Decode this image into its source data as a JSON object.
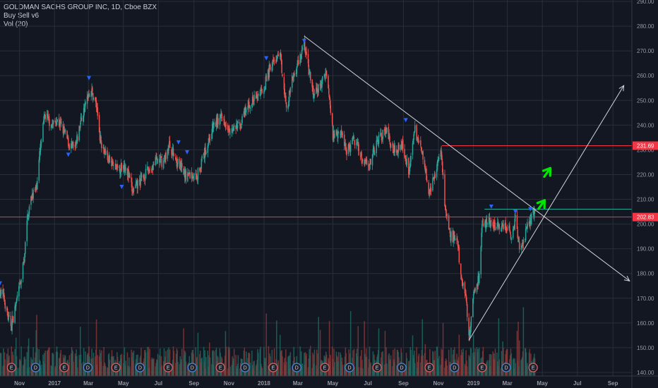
{
  "legend": {
    "symbol": "GOLDMAN SACHS GROUP INC, 1D, Cboe BZX",
    "indicator": "Buy Sell v6",
    "volume": "Vol (20)"
  },
  "colors": {
    "background": "#131722",
    "grid": "#2a2e39",
    "up": "#26a69a",
    "down": "#ef5350",
    "volume_up": "#1f6b64",
    "volume_down": "#8a3a3a",
    "signal": "#2962ff",
    "trendline": "#d1d4dc",
    "level_line": "#f23645",
    "arrow": "#00e600",
    "earnings_badge": "#e06666",
    "dividend_badge": "#4f8bd8"
  },
  "chart_data": {
    "type": "candlestick",
    "title": "GOLDMAN SACHS GROUP INC, 1D, Cboe BZX",
    "x_range": [
      "2016-09-28",
      "2019-10-04"
    ],
    "ylim": [
      140,
      290
    ],
    "y_ticks": [
      140,
      150,
      160,
      170,
      180,
      190,
      200,
      210,
      220,
      230,
      240,
      250,
      260,
      270,
      280,
      290
    ],
    "x_ticks": [
      {
        "date": "2016-11-01",
        "label": "Nov"
      },
      {
        "date": "2017-01-01",
        "label": "2017"
      },
      {
        "date": "2017-03-01",
        "label": "Mar"
      },
      {
        "date": "2017-05-01",
        "label": "May"
      },
      {
        "date": "2017-07-01",
        "label": "Jul"
      },
      {
        "date": "2017-09-01",
        "label": "Sep"
      },
      {
        "date": "2017-11-01",
        "label": "Nov"
      },
      {
        "date": "2018-01-01",
        "label": "2018"
      },
      {
        "date": "2018-03-01",
        "label": "Mar"
      },
      {
        "date": "2018-05-01",
        "label": "May"
      },
      {
        "date": "2018-07-01",
        "label": "Jul"
      },
      {
        "date": "2018-09-01",
        "label": "Sep"
      },
      {
        "date": "2018-11-01",
        "label": "Nov"
      },
      {
        "date": "2019-01-01",
        "label": "2019"
      },
      {
        "date": "2019-03-01",
        "label": "Mar"
      },
      {
        "date": "2019-05-01",
        "label": "May"
      },
      {
        "date": "2019-07-01",
        "label": "Jul"
      },
      {
        "date": "2019-09-01",
        "label": "Sep"
      }
    ],
    "price_anchors": [
      [
        "2016-09-28",
        173
      ],
      [
        "2016-10-05",
        170
      ],
      [
        "2016-10-12",
        162
      ],
      [
        "2016-10-18",
        159
      ],
      [
        "2016-10-26",
        168
      ],
      [
        "2016-11-03",
        176
      ],
      [
        "2016-11-09",
        186
      ],
      [
        "2016-11-15",
        203
      ],
      [
        "2016-11-23",
        212
      ],
      [
        "2016-11-30",
        214
      ],
      [
        "2016-12-07",
        230
      ],
      [
        "2016-12-15",
        244
      ],
      [
        "2016-12-28",
        240
      ],
      [
        "2017-01-05",
        242
      ],
      [
        "2017-01-12",
        240
      ],
      [
        "2017-01-20",
        236
      ],
      [
        "2017-01-27",
        232
      ],
      [
        "2017-02-06",
        230
      ],
      [
        "2017-02-16",
        242
      ],
      [
        "2017-02-24",
        248
      ],
      [
        "2017-03-01",
        253
      ],
      [
        "2017-03-06",
        254
      ],
      [
        "2017-03-15",
        248
      ],
      [
        "2017-03-22",
        234
      ],
      [
        "2017-04-05",
        226
      ],
      [
        "2017-04-20",
        222
      ],
      [
        "2017-05-05",
        224
      ],
      [
        "2017-05-17",
        213
      ],
      [
        "2017-06-01",
        218
      ],
      [
        "2017-06-15",
        222
      ],
      [
        "2017-06-30",
        226
      ],
      [
        "2017-07-10",
        225
      ],
      [
        "2017-07-20",
        232
      ],
      [
        "2017-08-01",
        226
      ],
      [
        "2017-08-15",
        220
      ],
      [
        "2017-08-25",
        220
      ],
      [
        "2017-09-05",
        219
      ],
      [
        "2017-09-20",
        229
      ],
      [
        "2017-10-05",
        240
      ],
      [
        "2017-10-20",
        243
      ],
      [
        "2017-11-06",
        238
      ],
      [
        "2017-11-20",
        240
      ],
      [
        "2017-12-05",
        248
      ],
      [
        "2017-12-18",
        251
      ],
      [
        "2018-01-02",
        256
      ],
      [
        "2018-01-12",
        264
      ],
      [
        "2018-01-29",
        268
      ],
      [
        "2018-02-05",
        256
      ],
      [
        "2018-02-09",
        246
      ],
      [
        "2018-02-20",
        259
      ],
      [
        "2018-03-01",
        265
      ],
      [
        "2018-03-12",
        273
      ],
      [
        "2018-03-20",
        262
      ],
      [
        "2018-03-28",
        252
      ],
      [
        "2018-04-10",
        256
      ],
      [
        "2018-04-20",
        262
      ],
      [
        "2018-05-01",
        236
      ],
      [
        "2018-05-14",
        238
      ],
      [
        "2018-05-25",
        230
      ],
      [
        "2018-06-08",
        234
      ],
      [
        "2018-06-22",
        226
      ],
      [
        "2018-07-06",
        225
      ],
      [
        "2018-07-18",
        234
      ],
      [
        "2018-08-01",
        238
      ],
      [
        "2018-08-15",
        230
      ],
      [
        "2018-08-30",
        232
      ],
      [
        "2018-09-10",
        222
      ],
      [
        "2018-09-21",
        238
      ],
      [
        "2018-10-05",
        228
      ],
      [
        "2018-10-16",
        213
      ],
      [
        "2018-10-25",
        218
      ],
      [
        "2018-11-05",
        232
      ],
      [
        "2018-11-07",
        226
      ],
      [
        "2018-11-12",
        207
      ],
      [
        "2018-11-21",
        195
      ],
      [
        "2018-12-03",
        194
      ],
      [
        "2018-12-11",
        178
      ],
      [
        "2018-12-19",
        172
      ],
      [
        "2018-12-24",
        153
      ],
      [
        "2019-01-02",
        173
      ],
      [
        "2019-01-10",
        178
      ],
      [
        "2019-01-16",
        198
      ],
      [
        "2019-01-25",
        202
      ],
      [
        "2019-02-04",
        200
      ],
      [
        "2019-02-15",
        198
      ],
      [
        "2019-02-28",
        199
      ],
      [
        "2019-03-08",
        196
      ],
      [
        "2019-03-15",
        202
      ],
      [
        "2019-03-22",
        190
      ],
      [
        "2019-03-29",
        192
      ],
      [
        "2019-04-05",
        199
      ],
      [
        "2019-04-12",
        203
      ],
      [
        "2019-04-18",
        205
      ]
    ],
    "signals": [
      {
        "date": "2016-09-28",
        "price": 176
      },
      {
        "date": "2017-01-25",
        "price": 228
      },
      {
        "date": "2017-03-02",
        "price": 259
      },
      {
        "date": "2017-04-28",
        "price": 215
      },
      {
        "date": "2017-08-05",
        "price": 233
      },
      {
        "date": "2017-08-20",
        "price": 229
      },
      {
        "date": "2018-01-05",
        "price": 267
      },
      {
        "date": "2018-03-12",
        "price": 274
      },
      {
        "date": "2018-09-05",
        "price": 242
      },
      {
        "date": "2019-02-01",
        "price": 207
      },
      {
        "date": "2019-03-15",
        "price": 205
      },
      {
        "date": "2019-04-10",
        "price": 206
      }
    ],
    "events": [
      {
        "date": "2016-10-18",
        "label": "E",
        "kind": "earnings"
      },
      {
        "date": "2016-11-29",
        "label": "D",
        "kind": "dividend"
      },
      {
        "date": "2017-01-18",
        "label": "E",
        "kind": "earnings"
      },
      {
        "date": "2017-02-28",
        "label": "D",
        "kind": "dividend"
      },
      {
        "date": "2017-04-18",
        "label": "E",
        "kind": "earnings"
      },
      {
        "date": "2017-05-30",
        "label": "D",
        "kind": "dividend"
      },
      {
        "date": "2017-07-18",
        "label": "E",
        "kind": "earnings"
      },
      {
        "date": "2017-08-29",
        "label": "D",
        "kind": "dividend"
      },
      {
        "date": "2017-10-17",
        "label": "E",
        "kind": "earnings"
      },
      {
        "date": "2017-11-29",
        "label": "D",
        "kind": "dividend"
      },
      {
        "date": "2018-01-17",
        "label": "E",
        "kind": "earnings"
      },
      {
        "date": "2018-02-27",
        "label": "D",
        "kind": "dividend"
      },
      {
        "date": "2018-04-17",
        "label": "E",
        "kind": "earnings"
      },
      {
        "date": "2018-05-30",
        "label": "D",
        "kind": "dividend"
      },
      {
        "date": "2018-07-17",
        "label": "E",
        "kind": "earnings"
      },
      {
        "date": "2018-08-29",
        "label": "D",
        "kind": "dividend"
      },
      {
        "date": "2018-10-16",
        "label": "E",
        "kind": "earnings"
      },
      {
        "date": "2018-11-29",
        "label": "D",
        "kind": "dividend"
      },
      {
        "date": "2019-01-16",
        "label": "E",
        "kind": "earnings"
      },
      {
        "date": "2019-02-27",
        "label": "D",
        "kind": "dividend"
      },
      {
        "date": "2019-04-15",
        "label": "E",
        "kind": "earnings"
      }
    ],
    "trendlines": [
      {
        "name": "descending",
        "from": {
          "date": "2018-03-12",
          "price": 276
        },
        "to": {
          "date": "2019-09-30",
          "price": 177
        }
      },
      {
        "name": "ascending",
        "from": {
          "date": "2018-12-24",
          "price": 153
        },
        "to": {
          "date": "2019-09-20",
          "price": 256
        }
      }
    ],
    "levels": [
      {
        "price": 231.69,
        "from": "2018-11-07",
        "label": "231.69",
        "color": "#f23645"
      },
      {
        "price": 202.83,
        "from": "2016-09-28",
        "label": "202.83",
        "color": "#f23645"
      },
      {
        "price": 206,
        "from": "2019-01-20",
        "label": "",
        "color": "#26a69a"
      }
    ],
    "arrows": [
      {
        "date": "2019-05-10",
        "price": 221
      },
      {
        "date": "2019-04-30",
        "price": 208
      }
    ]
  }
}
